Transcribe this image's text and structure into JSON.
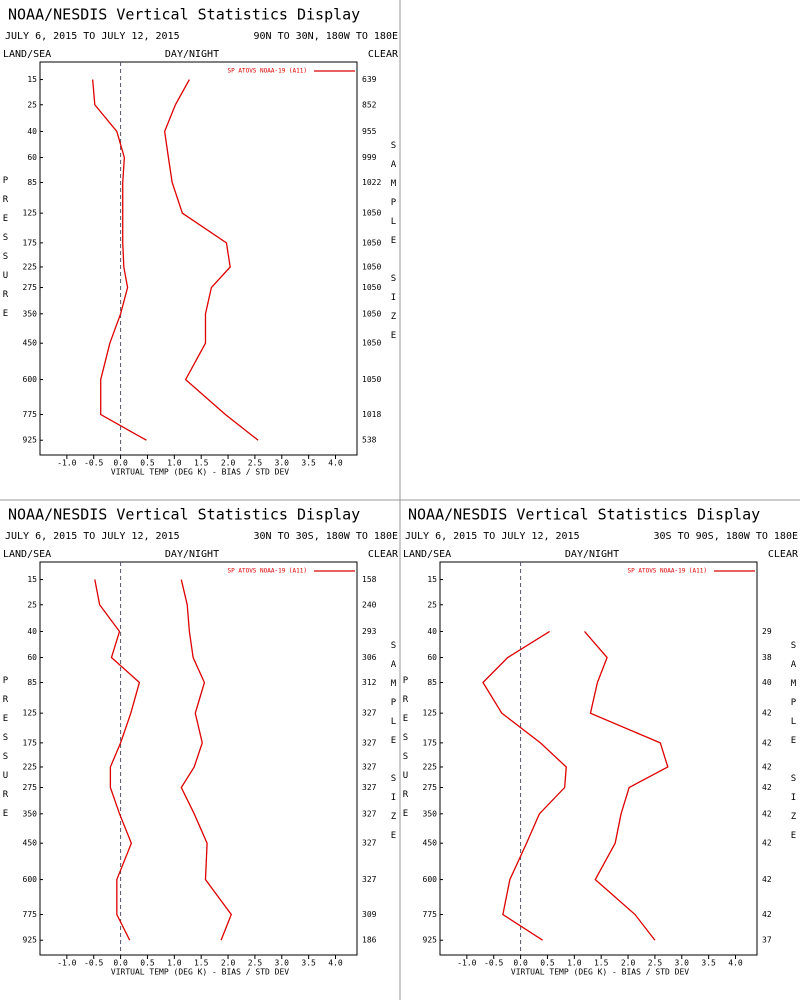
{
  "chart_data": [
    {
      "type": "line",
      "title": "NOAA/NESDIS Vertical Statistics Display",
      "subtitle": "JULY 6, 2015 TO JULY 12, 2015",
      "region": "90N TO 30N, 180W TO 180E",
      "land_sea": "LAND/SEA",
      "day_night": "DAY/NIGHT",
      "clear": "CLEAR",
      "y_label": "PRESSURE",
      "y2_label": "SAMPLE SIZE",
      "x_label": "VIRTUAL TEMP (DEG K) - BIAS / STD DEV",
      "y": [
        15,
        25,
        40,
        60,
        85,
        125,
        175,
        225,
        275,
        350,
        450,
        600,
        775,
        925
      ],
      "sample_size": [
        639,
        852,
        955,
        999,
        1022,
        1050,
        1050,
        1050,
        1050,
        1050,
        1050,
        1050,
        1018,
        538
      ],
      "series": [
        {
          "name": "SP ATOVS NOAA-19 (A11)",
          "color": "#dd0000",
          "bias": [
            -0.52,
            -0.48,
            -0.07,
            0.07,
            0.04,
            0.04,
            0.04,
            0.06,
            0.13,
            0.0,
            -0.2,
            -0.37,
            -0.37,
            0.48
          ],
          "std_dev": [
            1.28,
            1.02,
            0.82,
            0.89,
            0.96,
            1.15,
            1.97,
            2.04,
            1.69,
            1.58,
            1.58,
            1.21,
            1.95,
            2.56
          ]
        }
      ],
      "xlim": [
        -1.5,
        4.4
      ],
      "xticks": [
        {
          "value": -1,
          "label": "-1.0"
        },
        -0.5,
        {
          "value": 0,
          "label": "0.0"
        },
        0.5,
        {
          "value": 1,
          "label": "1.0"
        },
        1.5,
        {
          "value": 2,
          "label": "2.0"
        },
        2.5,
        {
          "value": 3,
          "label": "3.0"
        },
        3.5,
        {
          "value": 4,
          "label": "4.0"
        }
      ],
      "ylim": [
        10,
        1020
      ],
      "y_scale": "power",
      "y_exponent": 0.286,
      "y_reversed": true,
      "zero_line": true
    },
    {
      "type": "line",
      "title": "NOAA/NESDIS Vertical Statistics Display",
      "subtitle": "JULY 6, 2015 TO JULY 12, 2015",
      "region": "30N TO 30S, 180W TO 180E",
      "land_sea": "LAND/SEA",
      "day_night": "DAY/NIGHT",
      "clear": "CLEAR",
      "y_label": "PRESSURE",
      "y2_label": "SAMPLE SIZE",
      "x_label": "VIRTUAL TEMP (DEG K) - BIAS / STD DEV",
      "y": [
        15,
        25,
        40,
        60,
        85,
        125,
        175,
        225,
        275,
        350,
        450,
        600,
        775,
        925
      ],
      "sample_size": [
        158,
        240,
        293,
        306,
        312,
        327,
        327,
        327,
        327,
        327,
        327,
        327,
        309,
        186
      ],
      "series": [
        {
          "name": "SP ATOVS NOAA-19 (A11)",
          "color": "#dd0000",
          "bias": [
            -0.48,
            -0.39,
            -0.02,
            -0.17,
            0.35,
            0.19,
            0.0,
            -0.19,
            -0.19,
            -0.02,
            0.2,
            -0.07,
            -0.07,
            0.17
          ],
          "std_dev": [
            1.13,
            1.24,
            1.28,
            1.35,
            1.56,
            1.39,
            1.52,
            1.37,
            1.13,
            1.37,
            1.61,
            1.58,
            2.06,
            1.87
          ]
        }
      ],
      "xlim": [
        -1.5,
        4.4
      ],
      "xticks": [
        {
          "value": -1,
          "label": "-1.0"
        },
        -0.5,
        {
          "value": 0,
          "label": "0.0"
        },
        0.5,
        {
          "value": 1,
          "label": "1.0"
        },
        1.5,
        {
          "value": 2,
          "label": "2.0"
        },
        2.5,
        {
          "value": 3,
          "label": "3.0"
        },
        3.5,
        {
          "value": 4,
          "label": "4.0"
        }
      ],
      "ylim": [
        10,
        1020
      ],
      "y_scale": "power",
      "y_exponent": 0.286,
      "y_reversed": true,
      "zero_line": true
    },
    {
      "type": "line",
      "title": "NOAA/NESDIS Vertical Statistics Display",
      "subtitle": "JULY 6, 2015 TO JULY 12, 2015",
      "region": "30S TO 90S, 180W TO 180E",
      "land_sea": "LAND/SEA",
      "day_night": "DAY/NIGHT",
      "clear": "CLEAR",
      "y_label": "PRESSURE",
      "y2_label": "SAMPLE SIZE",
      "x_label": "VIRTUAL TEMP (DEG K) - BIAS / STD DEV",
      "y": [
        15,
        25,
        40,
        60,
        85,
        125,
        175,
        225,
        275,
        350,
        450,
        600,
        775,
        925
      ],
      "sample_size": [
        null,
        null,
        29,
        38,
        40,
        42,
        42,
        42,
        42,
        42,
        42,
        42,
        42,
        37
      ],
      "series": [
        {
          "name": "SP ATOVS NOAA-19 (A11)",
          "color": "#dd0000",
          "bias": [
            null,
            null,
            0.54,
            -0.24,
            -0.7,
            -0.35,
            0.37,
            0.85,
            0.82,
            0.35,
            0.11,
            -0.2,
            -0.33,
            0.41
          ],
          "std_dev": [
            null,
            null,
            1.19,
            1.61,
            1.43,
            1.3,
            2.6,
            2.74,
            2.02,
            1.87,
            1.76,
            1.39,
            2.13,
            2.5
          ]
        }
      ],
      "xlim": [
        -1.5,
        4.4
      ],
      "xticks": [
        {
          "value": -1,
          "label": "-1.0"
        },
        -0.5,
        {
          "value": 0,
          "label": "0.0"
        },
        0.5,
        {
          "value": 1,
          "label": "1.0"
        },
        1.5,
        {
          "value": 2,
          "label": "2.0"
        },
        2.5,
        {
          "value": 3,
          "label": "3.0"
        },
        3.5,
        {
          "value": 4,
          "label": "4.0"
        }
      ],
      "ylim": [
        10,
        1020
      ],
      "y_scale": "power",
      "y_exponent": 0.286,
      "y_reversed": true,
      "zero_line": true
    }
  ]
}
